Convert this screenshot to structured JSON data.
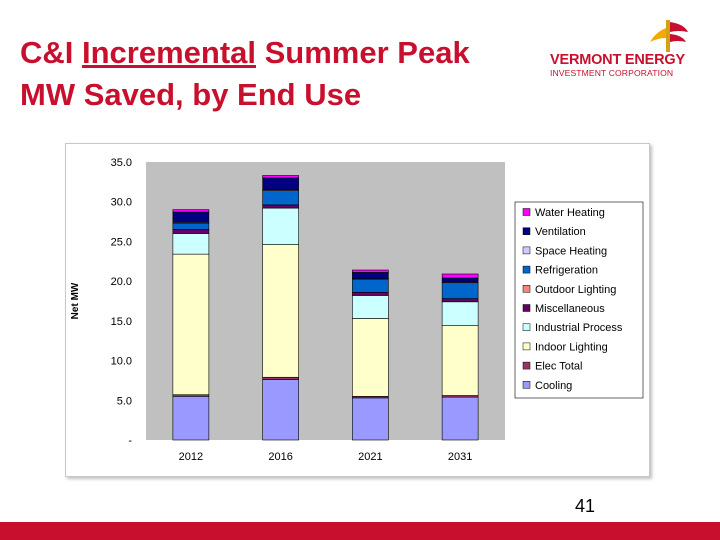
{
  "slide": {
    "title_part1": "C&I ",
    "title_underlined": "Incremental",
    "title_part2": " Summer Peak",
    "title_line2": "MW Saved, by End Use",
    "page_number": "41",
    "accent_color": "#c8102e"
  },
  "logo": {
    "line1": "VERMONT ENERGY",
    "line2": "INVESTMENT CORPORATION"
  },
  "chart_data": {
    "type": "bar",
    "stacked": true,
    "categories": [
      "2012",
      "2016",
      "2021",
      "2031"
    ],
    "xlabel": "",
    "ylabel": "Net MW",
    "ylim": [
      0,
      35
    ],
    "y_ticks": [
      {
        "value": 0,
        "label": "-"
      },
      {
        "value": 5,
        "label": "5.0"
      },
      {
        "value": 10,
        "label": "10.0"
      },
      {
        "value": 15,
        "label": "15.0"
      },
      {
        "value": 20,
        "label": "20.0"
      },
      {
        "value": 25,
        "label": "25.0"
      },
      {
        "value": 30,
        "label": "30.0"
      },
      {
        "value": 35,
        "label": "35.0"
      }
    ],
    "grid": false,
    "plot_background": "#c0c0c0",
    "legend_position": "right",
    "series": [
      {
        "name": "Cooling",
        "color": "#9999ff",
        "values": [
          5.5,
          7.6,
          5.3,
          5.4
        ]
      },
      {
        "name": "Elec Total",
        "color": "#993366",
        "values": [
          0.2,
          0.3,
          0.2,
          0.2
        ]
      },
      {
        "name": "Indoor Lighting",
        "color": "#ffffcc",
        "values": [
          17.7,
          16.7,
          9.8,
          8.8
        ]
      },
      {
        "name": "Industrial Process",
        "color": "#ccffff",
        "values": [
          2.6,
          4.6,
          2.9,
          3.0
        ]
      },
      {
        "name": "Miscellaneous",
        "color": "#660066",
        "values": [
          0.5,
          0.4,
          0.4,
          0.4
        ]
      },
      {
        "name": "Outdoor Lighting",
        "color": "#ff8080",
        "values": [
          0.0,
          0.0,
          0.0,
          0.0
        ]
      },
      {
        "name": "Refrigeration",
        "color": "#0066cc",
        "values": [
          0.8,
          1.8,
          1.6,
          2.0
        ]
      },
      {
        "name": "Space Heating",
        "color": "#ccccff",
        "values": [
          0.1,
          0.1,
          0.1,
          0.1
        ]
      },
      {
        "name": "Ventilation",
        "color": "#000080",
        "values": [
          1.3,
          1.5,
          0.8,
          0.5
        ]
      },
      {
        "name": "Water Heating",
        "color": "#ff00ff",
        "values": [
          0.3,
          0.3,
          0.3,
          0.5
        ]
      }
    ]
  }
}
